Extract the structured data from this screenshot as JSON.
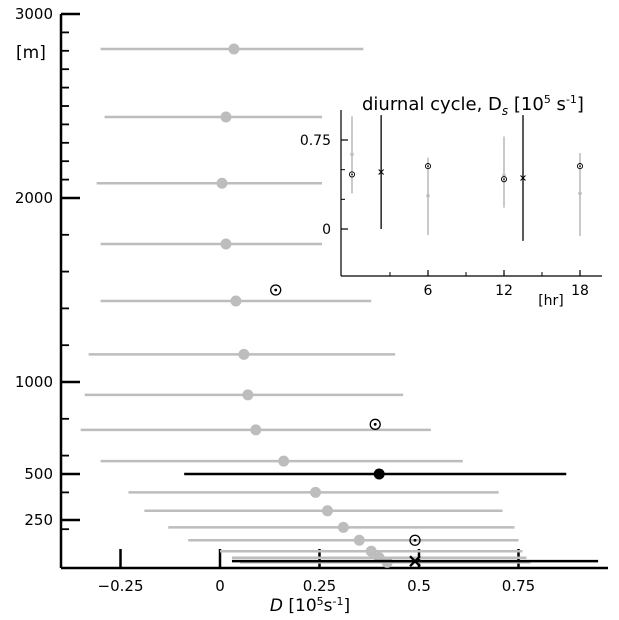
{
  "chart_data": [
    {
      "type": "scatter",
      "title": "",
      "xlabel": "D [10⁵s⁻¹]",
      "ylabel": "",
      "y_unit_label": "[m]",
      "xlim": [
        -0.4,
        0.96
      ],
      "ylim": [
        0,
        3000
      ],
      "x_ticks": [
        -0.25,
        0,
        0.25,
        0.5,
        0.75
      ],
      "x_tick_labels": [
        "−0.25",
        "0",
        "0.25",
        "0.5",
        "0.75"
      ],
      "y_ticks": [
        250,
        500,
        1000,
        2000,
        3000
      ],
      "y_tick_labels": [
        "250",
        "500",
        "1000",
        "2000",
        "3000"
      ],
      "series": [
        {
          "style": "gray-filled-circle-with-errorbar",
          "color": "#bdbdbd",
          "points": [
            {
              "y": 2810,
              "x": 0.035,
              "xmin": -0.3,
              "xmax": 0.36
            },
            {
              "y": 2440,
              "x": 0.015,
              "xmin": -0.29,
              "xmax": 0.32
            },
            {
              "y": 2080,
              "x": 0.005,
              "xmin": -0.31,
              "xmax": 0.31
            },
            {
              "y": 1750,
              "x": 0.015,
              "xmin": -0.3,
              "xmax": 0.32
            },
            {
              "y": 1440,
              "x": 0.04,
              "xmin": -0.3,
              "xmax": 0.38
            },
            {
              "y": 1150,
              "x": 0.06,
              "xmin": -0.33,
              "xmax": 0.44
            },
            {
              "y": 930,
              "x": 0.07,
              "xmin": -0.34,
              "xmax": 0.46
            },
            {
              "y": 740,
              "x": 0.09,
              "xmin": -0.35,
              "xmax": 0.53
            },
            {
              "y": 570,
              "x": 0.16,
              "xmin": -0.3,
              "xmax": 0.61
            },
            {
              "y": 400,
              "x": 0.24,
              "xmin": -0.23,
              "xmax": 0.7
            },
            {
              "y": 300,
              "x": 0.27,
              "xmin": -0.19,
              "xmax": 0.71
            },
            {
              "y": 210,
              "x": 0.31,
              "xmin": -0.13,
              "xmax": 0.74
            },
            {
              "y": 140,
              "x": 0.35,
              "xmin": -0.08,
              "xmax": 0.75
            },
            {
              "y": 80,
              "x": 0.38,
              "xmin": 0.0,
              "xmax": 0.76
            },
            {
              "y": 45,
              "x": 0.4,
              "xmin": 0.03,
              "xmax": 0.77
            },
            {
              "y": 20,
              "x": 0.42,
              "xmin": 0.05,
              "xmax": 0.78
            }
          ]
        },
        {
          "style": "black-filled-circle-with-errorbar",
          "color": "#000000",
          "points": [
            {
              "y": 500,
              "x": 0.4,
              "xmin": -0.09,
              "xmax": 0.87
            }
          ]
        },
        {
          "style": "circled-dot-marker",
          "color": "#000000",
          "points": [
            {
              "y": 1500,
              "x": 0.14
            },
            {
              "y": 770,
              "x": 0.39
            },
            {
              "y": 140,
              "x": 0.49
            }
          ]
        },
        {
          "style": "x-marker-with-errorbar",
          "color": "#000000",
          "points": [
            {
              "y": 10,
              "x": 0.49,
              "xmin": 0.03,
              "xmax": 0.95
            }
          ]
        }
      ]
    },
    {
      "type": "scatter",
      "title": "diurnal cycle, D",
      "title_subscript": "s",
      "title_unit_open": " [10",
      "title_unit_exp1": "5",
      "title_unit_mid": " s",
      "title_unit_exp2": "-1",
      "title_unit_close": "]",
      "xlabel": "[hr]",
      "xlim": [
        -0.5,
        21
      ],
      "ylim": [
        -0.45,
        1.1
      ],
      "x_ticks": [
        6,
        12,
        18
      ],
      "x_tick_labels": [
        "6",
        "12",
        "18"
      ],
      "y_ticks": [
        0,
        0.75
      ],
      "y_tick_labels": [
        "0",
        "0.75"
      ],
      "series": [
        {
          "style": "gray-errorbar",
          "color": "#bdbdbd",
          "points": [
            {
              "x": 0.0,
              "y": 0.63,
              "ymin": 0.3,
              "ymax": 0.95
            },
            {
              "x": 6.0,
              "y": 0.28,
              "ymin": -0.05,
              "ymax": 0.6
            },
            {
              "x": 12.0,
              "y": 0.45,
              "ymin": 0.18,
              "ymax": 0.78
            },
            {
              "x": 18.0,
              "y": 0.3,
              "ymin": -0.06,
              "ymax": 0.64
            }
          ]
        },
        {
          "style": "circled-dot-marker",
          "color": "#000000",
          "points": [
            {
              "x": 0.0,
              "y": 0.46
            },
            {
              "x": 6.0,
              "y": 0.53
            },
            {
              "x": 12.0,
              "y": 0.42
            },
            {
              "x": 18.0,
              "y": 0.53
            }
          ]
        },
        {
          "style": "black-x-with-errorbar",
          "color": "#000000",
          "points": [
            {
              "x": 2.3,
              "y": 0.48,
              "ymin": 0.0,
              "ymax": 0.96
            },
            {
              "x": 13.5,
              "y": 0.43,
              "ymin": -0.1,
              "ymax": 0.96
            }
          ]
        }
      ]
    }
  ]
}
